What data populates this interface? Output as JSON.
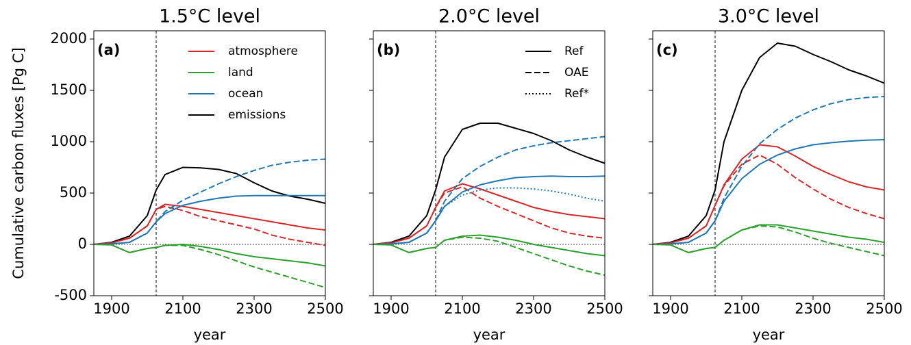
{
  "chart_data": [
    {
      "type": "line",
      "title": "1.5°C level",
      "panel_label": "(a)",
      "ylabel": "Cumulative carbon fluxes [Pg C]",
      "xlabel": "year",
      "xlim": [
        1850,
        2500
      ],
      "xticks": [
        1900,
        2100,
        2300,
        2500
      ],
      "ylim": [
        -500,
        2080
      ],
      "yticks": [
        -500,
        0,
        500,
        1000,
        1500,
        2000
      ],
      "ytick_labels": true,
      "vline": 2025,
      "hline": 0,
      "x": [
        1850,
        1900,
        1950,
        2000,
        2025,
        2050,
        2100,
        2150,
        2200,
        2250,
        2300,
        2350,
        2400,
        2450,
        2500
      ],
      "legend": [
        {
          "label": "atmosphere",
          "color": "#d62728",
          "dash": "solid"
        },
        {
          "label": "land",
          "color": "#2ca02c",
          "dash": "solid"
        },
        {
          "label": "ocean",
          "color": "#1f77b4",
          "dash": "solid"
        },
        {
          "label": "emissions",
          "color": "#000000",
          "dash": "solid"
        }
      ],
      "series": [
        {
          "color": "#000000",
          "dash": "solid",
          "values": [
            0,
            20,
            80,
            280,
            530,
            680,
            750,
            745,
            730,
            690,
            600,
            520,
            470,
            440,
            400
          ]
        },
        {
          "color": "#d62728",
          "dash": "solid",
          "values": [
            0,
            15,
            60,
            180,
            340,
            390,
            370,
            340,
            310,
            280,
            250,
            220,
            190,
            160,
            140
          ]
        },
        {
          "color": "#d62728",
          "dash": "dashed",
          "values": [
            0,
            15,
            60,
            180,
            340,
            370,
            330,
            270,
            230,
            190,
            150,
            90,
            50,
            20,
            -10
          ]
        },
        {
          "color": "#1f77b4",
          "dash": "solid",
          "values": [
            0,
            5,
            20,
            110,
            220,
            300,
            380,
            420,
            450,
            470,
            475,
            475,
            475,
            475,
            475
          ]
        },
        {
          "color": "#1f77b4",
          "dash": "dashed",
          "values": [
            0,
            5,
            20,
            110,
            220,
            320,
            430,
            510,
            590,
            660,
            720,
            770,
            800,
            820,
            830
          ]
        },
        {
          "color": "#2ca02c",
          "dash": "solid",
          "values": [
            0,
            -5,
            -80,
            -40,
            -30,
            -10,
            0,
            -20,
            -50,
            -90,
            -120,
            -140,
            -160,
            -180,
            -210
          ]
        },
        {
          "color": "#2ca02c",
          "dash": "dashed",
          "values": [
            0,
            -5,
            -80,
            -40,
            -30,
            -10,
            -10,
            -50,
            -100,
            -160,
            -220,
            -270,
            -320,
            -370,
            -420
          ]
        }
      ]
    },
    {
      "type": "line",
      "title": "2.0°C level",
      "panel_label": "(b)",
      "xlabel": "year",
      "xlim": [
        1850,
        2500
      ],
      "xticks": [
        1900,
        2100,
        2300,
        2500
      ],
      "ylim": [
        -500,
        2080
      ],
      "yticks": [
        -500,
        0,
        500,
        1000,
        1500,
        2000
      ],
      "ytick_labels": false,
      "vline": 2025,
      "hline": 0,
      "x": [
        1850,
        1900,
        1950,
        2000,
        2025,
        2050,
        2100,
        2150,
        2200,
        2250,
        2300,
        2350,
        2400,
        2450,
        2500
      ],
      "legend": [
        {
          "label": "Ref",
          "color": "#000000",
          "dash": "solid"
        },
        {
          "label": "OAE",
          "color": "#000000",
          "dash": "dashed"
        },
        {
          "label": "Ref*",
          "color": "#000000",
          "dash": "dotted"
        }
      ],
      "series": [
        {
          "color": "#000000",
          "dash": "solid",
          "values": [
            0,
            20,
            80,
            280,
            530,
            850,
            1120,
            1180,
            1180,
            1130,
            1080,
            1010,
            920,
            850,
            790
          ]
        },
        {
          "color": "#d62728",
          "dash": "solid",
          "values": [
            0,
            15,
            60,
            180,
            360,
            520,
            590,
            540,
            480,
            420,
            360,
            320,
            290,
            270,
            250
          ]
        },
        {
          "color": "#d62728",
          "dash": "dashed",
          "values": [
            0,
            15,
            60,
            180,
            360,
            500,
            560,
            450,
            370,
            300,
            230,
            160,
            110,
            80,
            60
          ]
        },
        {
          "color": "#1f77b4",
          "dash": "solid",
          "values": [
            0,
            5,
            20,
            110,
            230,
            370,
            510,
            580,
            620,
            650,
            660,
            665,
            660,
            660,
            665
          ]
        },
        {
          "color": "#1f77b4",
          "dash": "dashed",
          "values": [
            0,
            5,
            20,
            110,
            230,
            420,
            640,
            760,
            850,
            920,
            960,
            990,
            1010,
            1030,
            1050
          ]
        },
        {
          "color": "#1f77b4",
          "dash": "dotted",
          "values": [
            0,
            5,
            20,
            110,
            230,
            370,
            480,
            530,
            550,
            550,
            540,
            520,
            490,
            450,
            420
          ]
        },
        {
          "color": "#2ca02c",
          "dash": "solid",
          "values": [
            0,
            -5,
            -80,
            -40,
            -30,
            40,
            80,
            90,
            70,
            40,
            0,
            -30,
            -60,
            -90,
            -110
          ]
        },
        {
          "color": "#2ca02c",
          "dash": "dashed",
          "values": [
            0,
            -5,
            -80,
            -40,
            -30,
            40,
            70,
            60,
            30,
            -30,
            -90,
            -150,
            -210,
            -260,
            -300
          ]
        }
      ]
    },
    {
      "type": "line",
      "title": "3.0°C level",
      "panel_label": "(c)",
      "xlabel": "year",
      "xlim": [
        1850,
        2500
      ],
      "xticks": [
        1900,
        2100,
        2300,
        2500
      ],
      "ylim": [
        -500,
        2080
      ],
      "yticks": [
        -500,
        0,
        500,
        1000,
        1500,
        2000
      ],
      "ytick_labels": false,
      "vline": 2025,
      "hline": 0,
      "x": [
        1850,
        1900,
        1950,
        2000,
        2025,
        2050,
        2100,
        2150,
        2200,
        2250,
        2300,
        2350,
        2400,
        2450,
        2500
      ],
      "series": [
        {
          "color": "#000000",
          "dash": "solid",
          "values": [
            0,
            20,
            80,
            280,
            530,
            1000,
            1500,
            1820,
            1960,
            1930,
            1850,
            1780,
            1700,
            1640,
            1570
          ]
        },
        {
          "color": "#d62728",
          "dash": "solid",
          "values": [
            0,
            15,
            60,
            180,
            380,
            580,
            830,
            970,
            950,
            860,
            760,
            680,
            610,
            560,
            530
          ]
        },
        {
          "color": "#d62728",
          "dash": "dashed",
          "values": [
            0,
            15,
            60,
            180,
            380,
            570,
            780,
            870,
            780,
            650,
            540,
            440,
            360,
            300,
            250
          ]
        },
        {
          "color": "#1f77b4",
          "dash": "solid",
          "values": [
            0,
            5,
            20,
            110,
            230,
            420,
            640,
            780,
            870,
            930,
            970,
            990,
            1005,
            1015,
            1020
          ]
        },
        {
          "color": "#1f77b4",
          "dash": "dashed",
          "values": [
            0,
            5,
            20,
            110,
            230,
            450,
            760,
            980,
            1120,
            1230,
            1310,
            1370,
            1410,
            1430,
            1440
          ]
        },
        {
          "color": "#2ca02c",
          "dash": "solid",
          "values": [
            0,
            -5,
            -80,
            -40,
            -30,
            40,
            140,
            190,
            190,
            160,
            130,
            100,
            70,
            50,
            20
          ]
        },
        {
          "color": "#2ca02c",
          "dash": "dashed",
          "values": [
            0,
            -5,
            -80,
            -40,
            -30,
            40,
            140,
            180,
            170,
            120,
            60,
            10,
            -30,
            -70,
            -110
          ]
        }
      ]
    }
  ]
}
